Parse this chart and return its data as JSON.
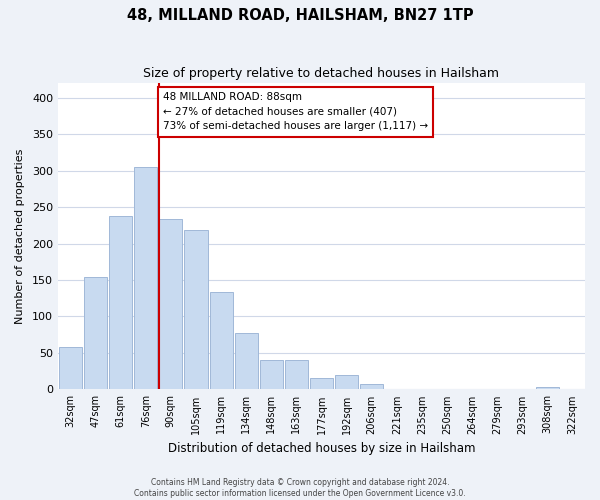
{
  "title": "48, MILLAND ROAD, HAILSHAM, BN27 1TP",
  "subtitle": "Size of property relative to detached houses in Hailsham",
  "xlabel": "Distribution of detached houses by size in Hailsham",
  "ylabel": "Number of detached properties",
  "bin_labels": [
    "32sqm",
    "47sqm",
    "61sqm",
    "76sqm",
    "90sqm",
    "105sqm",
    "119sqm",
    "134sqm",
    "148sqm",
    "163sqm",
    "177sqm",
    "192sqm",
    "206sqm",
    "221sqm",
    "235sqm",
    "250sqm",
    "264sqm",
    "279sqm",
    "293sqm",
    "308sqm",
    "322sqm"
  ],
  "bar_heights": [
    58,
    154,
    238,
    305,
    233,
    219,
    133,
    78,
    41,
    41,
    15,
    20,
    7,
    0,
    0,
    0,
    0,
    0,
    0,
    4,
    0
  ],
  "bar_color": "#c8daf0",
  "bar_edge_color": "#a0b8d8",
  "property_line_label": "48 MILLAND ROAD: 88sqm",
  "annotation_line1": "← 27% of detached houses are smaller (407)",
  "annotation_line2": "73% of semi-detached houses are larger (1,117) →",
  "annotation_box_color": "#ffffff",
  "annotation_box_edge": "#cc0000",
  "ylim": [
    0,
    420
  ],
  "yticks": [
    0,
    50,
    100,
    150,
    200,
    250,
    300,
    350,
    400
  ],
  "footer_line1": "Contains HM Land Registry data © Crown copyright and database right 2024.",
  "footer_line2": "Contains public sector information licensed under the Open Government Licence v3.0.",
  "bg_color": "#eef2f8",
  "plot_bg_color": "#ffffff",
  "grid_color": "#d0d8e8"
}
